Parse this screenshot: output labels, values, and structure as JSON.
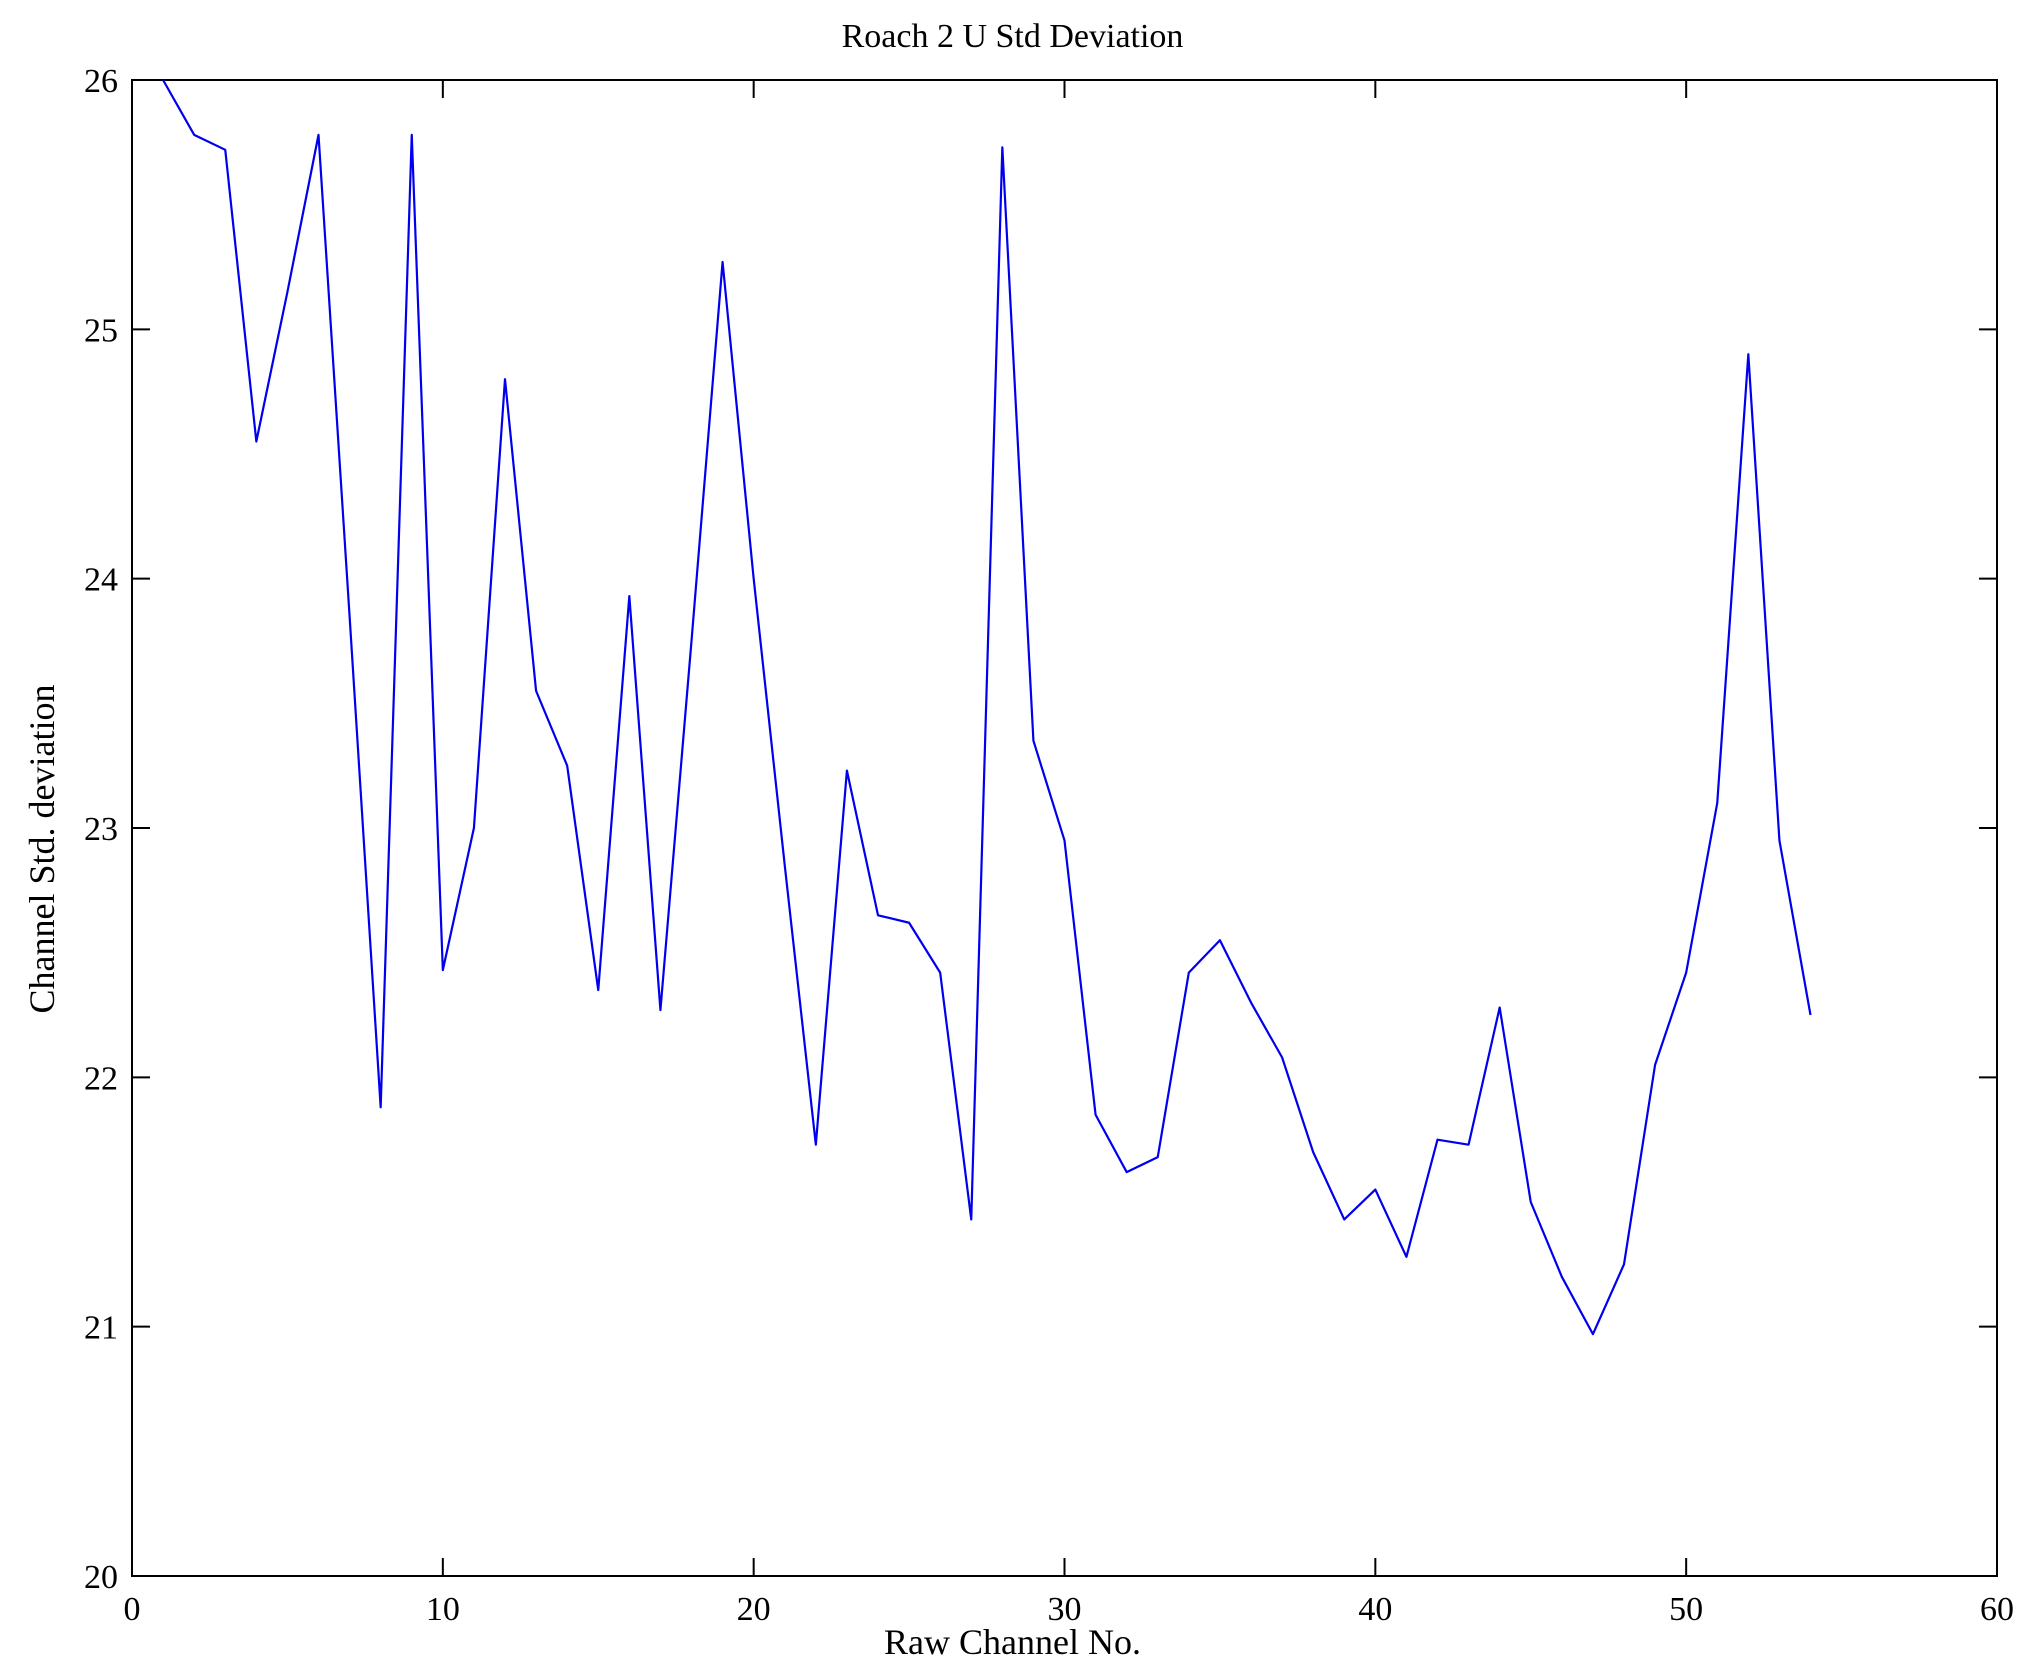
{
  "chart_data": {
    "type": "line",
    "title": "Roach 2 U Std Deviation",
    "xlabel": "Raw Channel No.",
    "ylabel": "Channel Std. deviation",
    "xlim": [
      0,
      60
    ],
    "ylim": [
      20,
      26
    ],
    "xticks": [
      0,
      10,
      20,
      30,
      40,
      50,
      60
    ],
    "yticks": [
      20,
      21,
      22,
      23,
      24,
      25,
      26
    ],
    "grid": false,
    "legend": "none",
    "line_color": "#0000ee",
    "axis_color": "#000000",
    "x": [
      1,
      2,
      3,
      4,
      5,
      6,
      7,
      8,
      9,
      10,
      11,
      12,
      13,
      14,
      15,
      16,
      17,
      18,
      19,
      20,
      21,
      22,
      23,
      24,
      25,
      26,
      27,
      28,
      29,
      30,
      31,
      32,
      33,
      34,
      35,
      36,
      37,
      38,
      39,
      40,
      41,
      42,
      43,
      44,
      45,
      46,
      47,
      48,
      49,
      50,
      51,
      52,
      53,
      54
    ],
    "y": [
      26.0,
      25.78,
      25.72,
      24.55,
      25.15,
      25.78,
      23.85,
      21.88,
      25.78,
      22.43,
      23.0,
      24.8,
      23.55,
      23.25,
      22.35,
      23.93,
      22.27,
      23.75,
      25.27,
      24.0,
      22.85,
      21.73,
      23.23,
      22.65,
      22.62,
      22.42,
      21.43,
      25.73,
      23.35,
      22.95,
      21.85,
      21.62,
      21.68,
      22.42,
      22.55,
      22.3,
      22.08,
      21.7,
      21.43,
      21.55,
      21.28,
      21.75,
      21.73,
      22.28,
      21.5,
      21.2,
      20.97,
      21.25,
      22.05,
      22.42,
      23.1,
      24.9,
      22.95,
      22.25
    ]
  }
}
